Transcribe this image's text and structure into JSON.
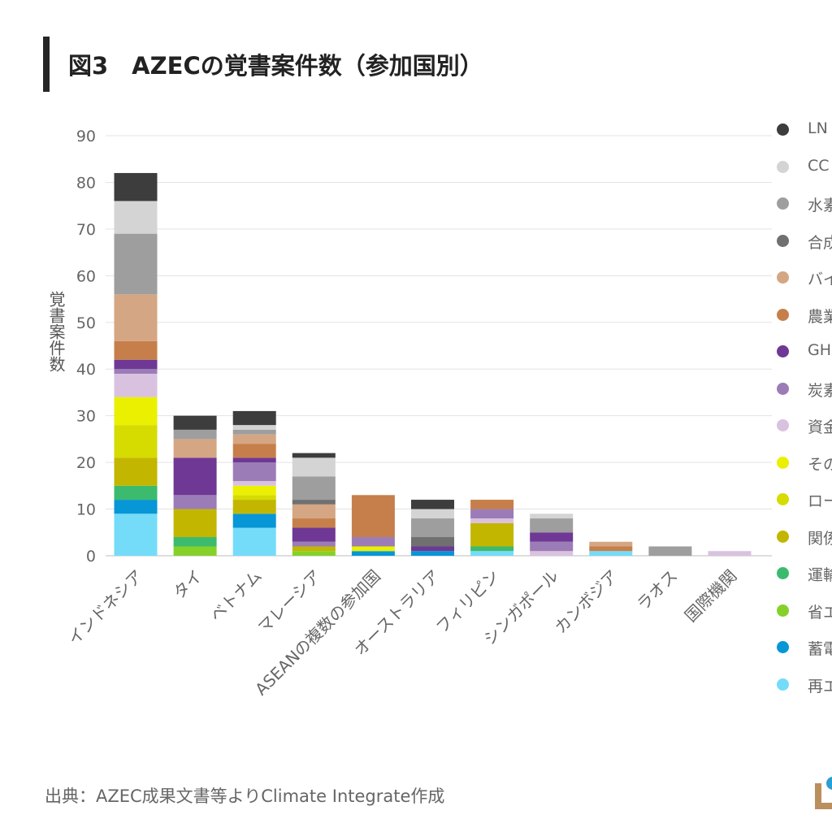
{
  "title": "図3　AZECの覚書案件数（参加国別）",
  "source": "出典：AZEC成果文書等よりClimate Integrate作成",
  "chart_data": {
    "type": "bar",
    "stacked": true,
    "ylabel": "覚書案件数",
    "ylim": [
      0,
      90
    ],
    "yticks": [
      0,
      10,
      20,
      30,
      40,
      50,
      60,
      70,
      80,
      90
    ],
    "grid": true,
    "legend_position": "right",
    "categories": [
      "インドネシア",
      "タイ",
      "ベトナム",
      "マレーシア",
      "ASEANの複数の参加国",
      "オーストラリア",
      "フィリピン",
      "シンガポール",
      "カンボジア",
      "ラオス",
      "国際機関"
    ],
    "series": [
      {
        "name": "再エ",
        "color": "#74dcf9",
        "values": [
          9,
          0,
          6,
          0,
          0,
          0,
          1,
          0,
          1,
          0,
          0
        ]
      },
      {
        "name": "蓄電",
        "color": "#0796d6",
        "values": [
          3,
          0,
          3,
          0,
          1,
          1,
          0,
          0,
          0,
          0,
          0
        ]
      },
      {
        "name": "省エ",
        "color": "#85d12a",
        "values": [
          0,
          2,
          0,
          1,
          0,
          0,
          0,
          0,
          0,
          0,
          0
        ]
      },
      {
        "name": "運輸",
        "color": "#3cbb6e",
        "values": [
          3,
          2,
          0,
          0,
          0,
          0,
          1,
          0,
          0,
          0,
          0
        ]
      },
      {
        "name": "関係",
        "color": "#c3b600",
        "values": [
          6,
          6,
          3,
          1,
          0,
          0,
          5,
          0,
          0,
          0,
          0
        ]
      },
      {
        "name": "ロー",
        "color": "#d6db00",
        "values": [
          7,
          0,
          1,
          0,
          0,
          0,
          0,
          0,
          0,
          0,
          0
        ]
      },
      {
        "name": "その",
        "color": "#eaf000",
        "values": [
          6,
          0,
          2,
          0,
          1,
          0,
          0,
          0,
          0,
          0,
          0
        ]
      },
      {
        "name": "資金",
        "color": "#d9c2df",
        "values": [
          5,
          0,
          1,
          0,
          0,
          0,
          1,
          1,
          0,
          0,
          1
        ]
      },
      {
        "name": "炭素",
        "color": "#9b7cb7",
        "values": [
          1,
          3,
          4,
          1,
          2,
          0,
          2,
          2,
          0,
          0,
          0
        ]
      },
      {
        "name": "GH",
        "color": "#6e3894",
        "values": [
          2,
          8,
          1,
          3,
          0,
          1,
          0,
          2,
          0,
          0,
          0
        ]
      },
      {
        "name": "農業",
        "color": "#c67f4a",
        "values": [
          4,
          0,
          3,
          2,
          9,
          0,
          2,
          0,
          1,
          0,
          0
        ]
      },
      {
        "name": "バイ",
        "color": "#d4a683",
        "values": [
          10,
          4,
          2,
          3,
          0,
          0,
          0,
          0,
          1,
          0,
          0
        ]
      },
      {
        "name": "合成",
        "color": "#707070",
        "values": [
          0,
          0,
          0,
          1,
          0,
          2,
          0,
          0,
          0,
          0,
          0
        ]
      },
      {
        "name": "水素",
        "color": "#9e9e9e",
        "values": [
          13,
          2,
          1,
          5,
          0,
          4,
          0,
          3,
          0,
          2,
          0
        ]
      },
      {
        "name": "CC",
        "color": "#d4d4d4",
        "values": [
          7,
          0,
          1,
          4,
          0,
          2,
          0,
          1,
          0,
          0,
          0
        ]
      },
      {
        "name": "LN",
        "color": "#3d3d3d",
        "values": [
          6,
          3,
          3,
          1,
          0,
          2,
          0,
          0,
          0,
          0,
          0
        ]
      }
    ]
  }
}
